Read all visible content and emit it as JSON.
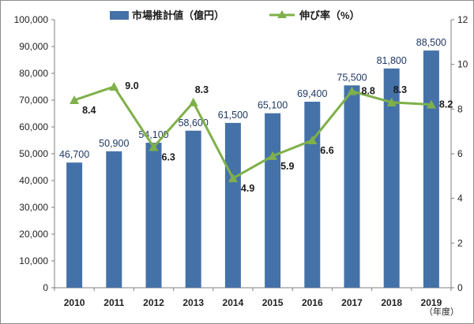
{
  "chart_data": {
    "type": "bar",
    "categories": [
      "2010",
      "2011",
      "2012",
      "2013",
      "2014",
      "2015",
      "2016",
      "2017",
      "2018",
      "2019"
    ],
    "series": [
      {
        "name": "市場推計値（億円）",
        "type": "bar",
        "axis": "left",
        "values": [
          46700,
          50900,
          54100,
          58600,
          61500,
          65100,
          69400,
          75500,
          81800,
          88500
        ],
        "labels": [
          "46,700",
          "50,900",
          "54,100",
          "58,600",
          "61,500",
          "65,100",
          "69,400",
          "75,500",
          "81,800",
          "88,500"
        ],
        "color": "#4472a8"
      },
      {
        "name": "伸び率（%）",
        "type": "line",
        "axis": "right",
        "values": [
          8.4,
          9.0,
          6.3,
          8.3,
          4.9,
          5.9,
          6.6,
          8.8,
          8.3,
          8.2
        ],
        "labels": [
          "8.4",
          "9.0",
          "6.3",
          "8.3",
          "4.9",
          "5.9",
          "6.6",
          "8.8",
          "8.3",
          "8.2"
        ],
        "color": "#7fb04a"
      }
    ],
    "xunit": "（年度）",
    "ylim": [
      0,
      100000
    ],
    "yticks": [
      "0",
      "10,000",
      "20,000",
      "30,000",
      "40,000",
      "50,000",
      "60,000",
      "70,000",
      "80,000",
      "90,000",
      "100,000"
    ],
    "y2lim": [
      0,
      12
    ],
    "y2ticks": [
      "0",
      "2",
      "4",
      "6",
      "8",
      "10",
      "12"
    ],
    "legend_position": "top",
    "grid": false
  }
}
